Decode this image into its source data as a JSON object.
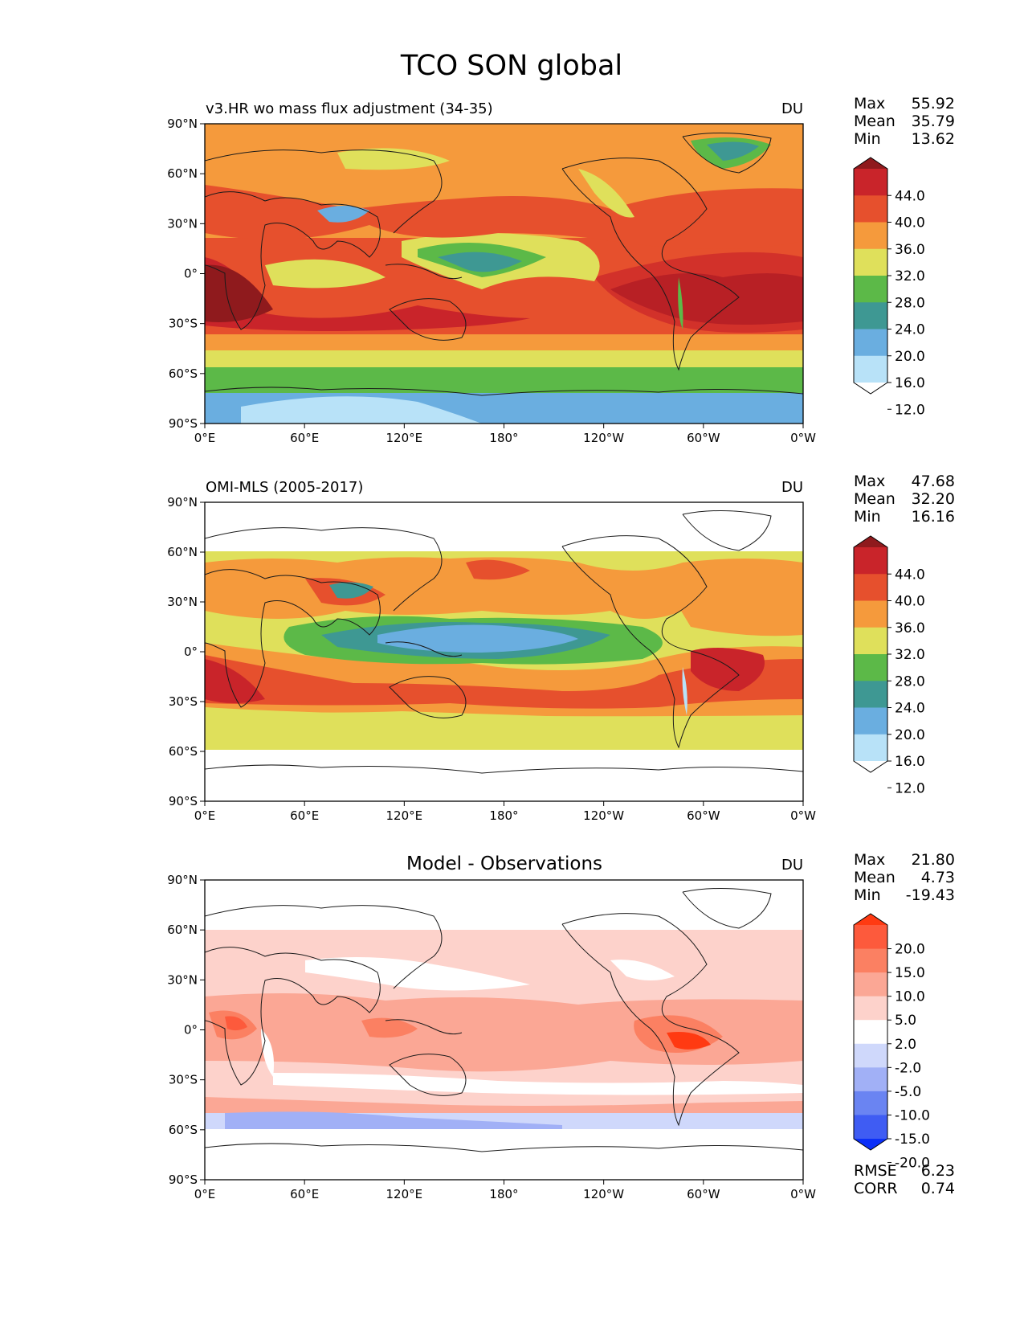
{
  "figure": {
    "title": "TCO SON global",
    "lon_ticks": [
      "0°E",
      "60°E",
      "120°E",
      "180°",
      "120°W",
      "60°W",
      "0°W"
    ],
    "lat_ticks": [
      "90°N",
      "60°N",
      "30°N",
      "0°",
      "30°S",
      "60°S",
      "90°S"
    ]
  },
  "panels": [
    {
      "id": "model",
      "left_title": "v3.HR wo mass flux adjustment (34-35)",
      "center_title": "",
      "units": "DU",
      "stats": [
        {
          "label": "Max",
          "value": "55.92"
        },
        {
          "label": "Mean",
          "value": "35.79"
        },
        {
          "label": "Min",
          "value": "13.62"
        }
      ],
      "colorbar": {
        "labels": [
          "44.0",
          "40.0",
          "36.0",
          "32.0",
          "28.0",
          "24.0",
          "20.0",
          "16.0",
          "12.0"
        ],
        "colors": [
          "#8f1a1d",
          "#c9242a",
          "#e6502d",
          "#f59a3c",
          "#dfe05b",
          "#5cb948",
          "#3e9893",
          "#6aaee0",
          "#b8e2f8",
          "#ffffff"
        ]
      },
      "bottom_stats": []
    },
    {
      "id": "obs",
      "left_title": "OMI-MLS (2005-2017)",
      "center_title": "",
      "units": "DU",
      "stats": [
        {
          "label": "Max",
          "value": "47.68"
        },
        {
          "label": "Mean",
          "value": "32.20"
        },
        {
          "label": "Min",
          "value": "16.16"
        }
      ],
      "colorbar": {
        "labels": [
          "44.0",
          "40.0",
          "36.0",
          "32.0",
          "28.0",
          "24.0",
          "20.0",
          "16.0",
          "12.0"
        ],
        "colors": [
          "#8f1a1d",
          "#c9242a",
          "#e6502d",
          "#f59a3c",
          "#dfe05b",
          "#5cb948",
          "#3e9893",
          "#6aaee0",
          "#b8e2f8",
          "#ffffff"
        ]
      },
      "bottom_stats": []
    },
    {
      "id": "diff",
      "left_title": "",
      "center_title": "Model - Observations",
      "units": "DU",
      "stats": [
        {
          "label": "Max",
          "value": "21.80"
        },
        {
          "label": "Mean",
          "value": "4.73"
        },
        {
          "label": "Min",
          "value": "-19.43"
        }
      ],
      "colorbar": {
        "labels": [
          "20.0",
          "15.0",
          "10.0",
          "5.0",
          "2.0",
          "-2.0",
          "-5.0",
          "-10.0",
          "-15.0",
          "-20.0"
        ],
        "colors": [
          "#ff3a12",
          "#fd5a3c",
          "#fb8062",
          "#fba795",
          "#fdd2cb",
          "#ffffff",
          "#cfd8fb",
          "#a1b0f6",
          "#6a84f2",
          "#3f5cf3",
          "#0b2ff8"
        ]
      },
      "bottom_stats": [
        {
          "label": "RMSE",
          "value": "6.23"
        },
        {
          "label": "CORR",
          "value": "0.74"
        }
      ]
    }
  ]
}
